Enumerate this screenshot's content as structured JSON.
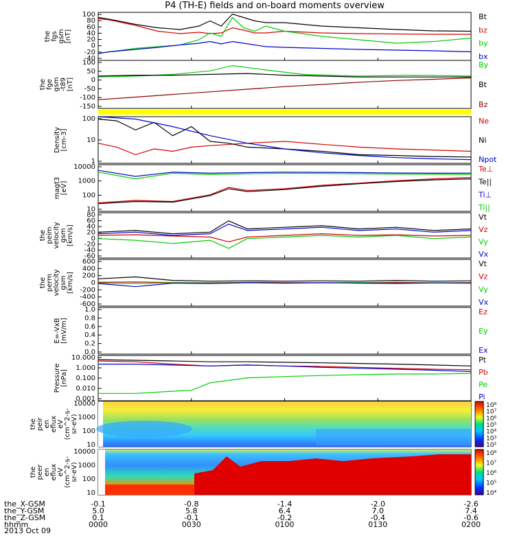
{
  "title": "P4 (TH-E) fields and on-board moments overview",
  "colors": {
    "black": "#000000",
    "red": "#d00000",
    "green": "#00cc00",
    "blue": "#0000cc",
    "yellow": "#ffff00"
  },
  "footer": {
    "rows": [
      {
        "label": "the_X-GSM",
        "values": [
          "-0.1",
          "-0.8",
          "-1.4",
          "-2.0",
          "-2.6"
        ]
      },
      {
        "label": "the_Y-GSM",
        "values": [
          "5.0",
          "5.8",
          "6.4",
          "7.0",
          "7.4"
        ]
      },
      {
        "label": "the_Z-GSM",
        "values": [
          "0.1",
          "-0.1",
          "-0.2",
          "-0.4",
          "-0.6"
        ]
      },
      {
        "label": "hhmm",
        "values": [
          "0000",
          "0030",
          "0100",
          "0130",
          "0200"
        ]
      }
    ],
    "date": "2013 Oct 09"
  },
  "chart_data": [
    {
      "type": "line",
      "ylabel": "the\nfgs\ngsm\n[nT]",
      "ytick_labels": [
        "100",
        "80",
        "60",
        "40",
        "20",
        "0",
        "-20",
        "-40"
      ],
      "ylim": [
        -40,
        100
      ],
      "legend": [
        "Bt",
        "bz",
        "by",
        "bx"
      ],
      "series": [
        {
          "name": "Bt",
          "x": [
            0,
            0.03,
            0.1,
            0.16,
            0.22,
            0.27,
            0.3,
            0.33,
            0.36,
            0.39,
            0.42,
            0.45,
            0.5,
            0.6,
            0.7,
            0.8,
            0.9,
            1.0
          ],
          "values": [
            85,
            80,
            65,
            55,
            50,
            60,
            75,
            60,
            95,
            85,
            75,
            70,
            70,
            60,
            55,
            50,
            46,
            45
          ]
        },
        {
          "name": "bz",
          "x": [
            0,
            0.03,
            0.1,
            0.16,
            0.22,
            0.27,
            0.3,
            0.33,
            0.36,
            0.39,
            0.42,
            0.45,
            0.5,
            0.6,
            0.7,
            0.8,
            0.9,
            1.0
          ],
          "values": [
            82,
            78,
            62,
            45,
            38,
            42,
            38,
            40,
            55,
            48,
            40,
            40,
            45,
            40,
            38,
            37,
            36,
            36
          ]
        },
        {
          "name": "by",
          "x": [
            0,
            0.03,
            0.1,
            0.16,
            0.22,
            0.27,
            0.3,
            0.33,
            0.36,
            0.39,
            0.42,
            0.45,
            0.5,
            0.6,
            0.7,
            0.8,
            0.9,
            1.0
          ],
          "values": [
            -20,
            -15,
            -5,
            0,
            5,
            20,
            40,
            30,
            85,
            55,
            45,
            60,
            45,
            30,
            20,
            10,
            15,
            25
          ]
        },
        {
          "name": "bx",
          "x": [
            0,
            0.03,
            0.1,
            0.16,
            0.22,
            0.27,
            0.3,
            0.33,
            0.36,
            0.39,
            0.42,
            0.45,
            0.5,
            0.6,
            0.7,
            0.8,
            0.9,
            1.0
          ],
          "values": [
            -20,
            -15,
            -8,
            -2,
            5,
            10,
            15,
            8,
            15,
            10,
            5,
            0,
            -2,
            -5,
            -8,
            -10,
            -12,
            -15
          ]
        }
      ]
    },
    {
      "type": "line",
      "ylabel": "the\nfge\ngsm\n-t89\n[nT]",
      "ytick_labels": [
        "100",
        "50",
        "0",
        "-50",
        "-100",
        "-150"
      ],
      "ylim": [
        -175,
        100
      ],
      "legend": [
        "By",
        "Bt",
        "Bz"
      ],
      "series": [
        {
          "name": "By",
          "x": [
            0,
            0.1,
            0.2,
            0.3,
            0.36,
            0.45,
            0.55,
            0.7,
            0.85,
            1.0
          ],
          "values": [
            5,
            10,
            20,
            40,
            70,
            45,
            20,
            10,
            15,
            10
          ]
        },
        {
          "name": "Bt",
          "x": [
            0,
            0.1,
            0.2,
            0.3,
            0.4,
            0.5,
            0.6,
            0.7,
            0.8,
            0.9,
            1.0
          ],
          "values": [
            10,
            15,
            15,
            20,
            25,
            15,
            10,
            5,
            5,
            5,
            5
          ]
        },
        {
          "name": "Bz",
          "x": [
            0,
            0.1,
            0.2,
            0.3,
            0.4,
            0.5,
            0.6,
            0.7,
            0.8,
            0.9,
            1.0
          ],
          "values": [
            -125,
            -110,
            -95,
            -80,
            -65,
            -50,
            -38,
            -25,
            -15,
            -8,
            0
          ]
        }
      ]
    },
    {
      "type": "line",
      "ylabel": "Density\n[cm-3]",
      "ytick_labels": [
        "100",
        "10",
        "1"
      ],
      "ylim": [
        0.7,
        200
      ],
      "yscale": "log",
      "legend": [
        "Ne",
        "Ni",
        "Npot"
      ],
      "series": [
        {
          "name": "Ne",
          "x": [
            0,
            0.05,
            0.1,
            0.15,
            0.2,
            0.25,
            0.3,
            0.4,
            0.5,
            0.6,
            0.7,
            0.8,
            0.9,
            1.0
          ],
          "values": [
            8,
            5,
            2,
            4,
            3,
            5,
            6,
            8,
            10,
            7,
            5,
            4,
            3.5,
            3
          ]
        },
        {
          "name": "Ni",
          "x": [
            0,
            0.05,
            0.1,
            0.15,
            0.2,
            0.25,
            0.3,
            0.35,
            0.4,
            0.5,
            0.6,
            0.7,
            0.8,
            0.9,
            1.0
          ],
          "values": [
            150,
            120,
            40,
            100,
            20,
            60,
            10,
            8,
            5,
            4,
            3,
            2,
            1.8,
            1.6,
            1.5
          ]
        },
        {
          "name": "Npot",
          "x": [
            0,
            0.1,
            0.2,
            0.3,
            0.4,
            0.5,
            0.6,
            0.7,
            0.8,
            0.9,
            1.0
          ],
          "values": [
            200,
            150,
            60,
            20,
            8,
            4,
            2.5,
            1.8,
            1.4,
            1.2,
            1.1
          ]
        }
      ]
    },
    {
      "type": "line",
      "ylabel": "magt3\n[eV]",
      "ytick_labels": [
        "10000",
        "1000",
        "100",
        "10"
      ],
      "ylim": [
        10,
        20000
      ],
      "yscale": "log",
      "legend": [
        "Te⊥",
        "Te||",
        "Ti⊥",
        "Ti||"
      ],
      "series": [
        {
          "name": "Te⊥",
          "x": [
            0,
            0.1,
            0.2,
            0.3,
            0.35,
            0.4,
            0.5,
            0.6,
            0.7,
            0.8,
            0.9,
            1.0
          ],
          "values": [
            40,
            60,
            50,
            150,
            500,
            300,
            400,
            700,
            1000,
            1500,
            2000,
            2500
          ]
        },
        {
          "name": "Te||",
          "x": [
            0,
            0.1,
            0.2,
            0.3,
            0.35,
            0.4,
            0.5,
            0.6,
            0.7,
            0.8,
            0.9,
            1.0
          ],
          "values": [
            35,
            50,
            45,
            130,
            400,
            250,
            350,
            600,
            900,
            1300,
            1700,
            2000
          ]
        },
        {
          "name": "Ti⊥",
          "x": [
            0,
            0.1,
            0.2,
            0.3,
            0.4,
            0.5,
            0.6,
            0.7,
            0.8,
            0.9,
            1.0
          ],
          "values": [
            8000,
            3000,
            6000,
            5000,
            5500,
            6000,
            5800,
            5500,
            5200,
            5000,
            5000
          ]
        },
        {
          "name": "Ti||",
          "x": [
            0,
            0.1,
            0.2,
            0.3,
            0.4,
            0.5,
            0.6,
            0.7,
            0.8,
            0.9,
            1.0
          ],
          "values": [
            6000,
            2000,
            5000,
            4000,
            4500,
            5000,
            4800,
            4500,
            4300,
            4200,
            4000
          ]
        }
      ]
    },
    {
      "type": "line",
      "ylabel": "the\npeim\nvelocity\ngsm\n[km/s]",
      "ytick_labels": [
        "80",
        "60",
        "40",
        "20",
        "0",
        "-20",
        "-40",
        "-60"
      ],
      "ylim": [
        -60,
        80
      ],
      "legend": [
        "Vt",
        "Vz",
        "Vy",
        "Vx"
      ],
      "series": [
        {
          "name": "Vt",
          "x": [
            0,
            0.1,
            0.2,
            0.3,
            0.35,
            0.4,
            0.5,
            0.6,
            0.7,
            0.8,
            0.9,
            1.0
          ],
          "values": [
            20,
            25,
            15,
            20,
            55,
            30,
            35,
            40,
            30,
            35,
            25,
            30
          ]
        },
        {
          "name": "Vz",
          "x": [
            0,
            0.1,
            0.2,
            0.3,
            0.35,
            0.4,
            0.5,
            0.6,
            0.7,
            0.8,
            0.9,
            1.0
          ],
          "values": [
            10,
            12,
            8,
            5,
            -10,
            5,
            10,
            15,
            10,
            12,
            8,
            10
          ]
        },
        {
          "name": "Vy",
          "x": [
            0,
            0.1,
            0.2,
            0.3,
            0.35,
            0.4,
            0.5,
            0.6,
            0.7,
            0.8,
            0.9,
            1.0
          ],
          "values": [
            0,
            -5,
            -15,
            -5,
            -30,
            0,
            5,
            10,
            5,
            10,
            0,
            5
          ]
        },
        {
          "name": "Vx",
          "x": [
            0,
            0.1,
            0.2,
            0.3,
            0.35,
            0.4,
            0.5,
            0.6,
            0.7,
            0.8,
            0.9,
            1.0
          ],
          "values": [
            15,
            20,
            10,
            15,
            45,
            25,
            30,
            35,
            25,
            30,
            20,
            25
          ]
        }
      ]
    },
    {
      "type": "line",
      "ylabel": "the\nperm\nvelocity\ngsm\n[km/s]",
      "ytick_labels": [
        "600",
        "400",
        "200",
        "0",
        "-200",
        "-400",
        "-600"
      ],
      "ylim": [
        -600,
        600
      ],
      "legend": [
        "Vt",
        "Vz",
        "Vy",
        "Vx"
      ],
      "series": [
        {
          "name": "Vt",
          "x": [
            0,
            0.1,
            0.2,
            0.3,
            0.4,
            0.5,
            0.6,
            0.7,
            0.8,
            0.9,
            1.0
          ],
          "values": [
            100,
            150,
            60,
            40,
            50,
            40,
            50,
            40,
            60,
            40,
            50
          ]
        },
        {
          "name": "Vz",
          "x": [
            0,
            0.1,
            0.2,
            0.3,
            0.4,
            0.5,
            0.6,
            0.7,
            0.8,
            0.9,
            1.0
          ],
          "values": [
            10,
            20,
            5,
            0,
            10,
            5,
            0,
            5,
            10,
            0,
            5
          ]
        },
        {
          "name": "Vy",
          "x": [
            0,
            0.1,
            0.2,
            0.3,
            0.4,
            0.5,
            0.6,
            0.7,
            0.8,
            0.9,
            1.0
          ],
          "values": [
            -10,
            -20,
            0,
            -5,
            5,
            -5,
            0,
            5,
            -10,
            0,
            -5
          ]
        },
        {
          "name": "Vx",
          "x": [
            0,
            0.1,
            0.2,
            0.3,
            0.4,
            0.5,
            0.6,
            0.7,
            0.8,
            0.9,
            1.0
          ],
          "values": [
            -20,
            -100,
            -10,
            -20,
            0,
            -10,
            0,
            -10,
            -20,
            -5,
            -10
          ]
        }
      ]
    },
    {
      "type": "line",
      "ylabel": "E=-VxB\n[mV/m]",
      "ytick_labels": [
        "1.0",
        "0.8",
        "0.6",
        "0.4",
        "0.2",
        "0.0"
      ],
      "ylim": [
        0,
        1
      ],
      "legend": [
        "Ez",
        "Ey",
        "Ex"
      ],
      "series": []
    },
    {
      "type": "line",
      "ylabel": "Pressure\n[nPa]",
      "ytick_labels": [
        "10.000",
        "1.000",
        "0.100",
        "0.010",
        "0.001"
      ],
      "ylim": [
        0.001,
        20
      ],
      "yscale": "log",
      "legend": [
        "Pt",
        "Pb",
        "Pe",
        "Pi"
      ],
      "series": [
        {
          "name": "Pt",
          "x": [
            0,
            0.1,
            0.2,
            0.3,
            0.4,
            0.5,
            0.6,
            0.7,
            0.8,
            0.9,
            1.0
          ],
          "values": [
            8,
            7,
            6,
            5,
            5,
            4.5,
            4,
            3.5,
            3,
            2.5,
            2
          ]
        },
        {
          "name": "Pb",
          "x": [
            0,
            0.1,
            0.2,
            0.3,
            0.4,
            0.5,
            0.6,
            0.7,
            0.8,
            0.9,
            1.0
          ],
          "values": [
            6,
            5,
            3,
            2,
            2.5,
            2,
            1.8,
            1.5,
            1.2,
            1,
            0.9
          ]
        },
        {
          "name": "Pe",
          "x": [
            0,
            0.1,
            0.2,
            0.25,
            0.3,
            0.4,
            0.5,
            0.6,
            0.7,
            0.8,
            0.9,
            1.0
          ],
          "values": [
            0.005,
            0.005,
            0.008,
            0.01,
            0.05,
            0.15,
            0.2,
            0.25,
            0.3,
            0.35,
            0.35,
            0.4
          ]
        },
        {
          "name": "Pi",
          "x": [
            0,
            0.1,
            0.2,
            0.3,
            0.4,
            0.5,
            0.6,
            0.7,
            0.8,
            0.9,
            1.0
          ],
          "values": [
            3,
            3,
            2.5,
            2,
            2.5,
            2,
            1.5,
            1.2,
            1,
            0.8,
            0.6
          ]
        }
      ]
    },
    {
      "type": "heatmap",
      "ylabel": "the\npeir\nen\neflux\neV\n(cm^2-s-\nsr-eV)",
      "ytick_labels": [
        "10000",
        "1000",
        "100",
        "10"
      ],
      "ylim": [
        5,
        20000
      ],
      "yscale": "log",
      "colorbar_labels": [
        "10⁸",
        "10⁷",
        "10⁶",
        "10⁵",
        "10⁴",
        "10³",
        "10²"
      ]
    },
    {
      "type": "heatmap",
      "ylabel": "the\npeer\nen\neflux\neV\n(cm^2-s-\nsr-eV)",
      "ytick_labels": [
        "10000",
        "1000",
        "100",
        "10"
      ],
      "ylim": [
        5,
        20000
      ],
      "yscale": "log",
      "colorbar_labels": [
        "10⁸",
        "10⁷",
        "10⁶",
        "10⁵",
        "10⁴"
      ]
    }
  ]
}
